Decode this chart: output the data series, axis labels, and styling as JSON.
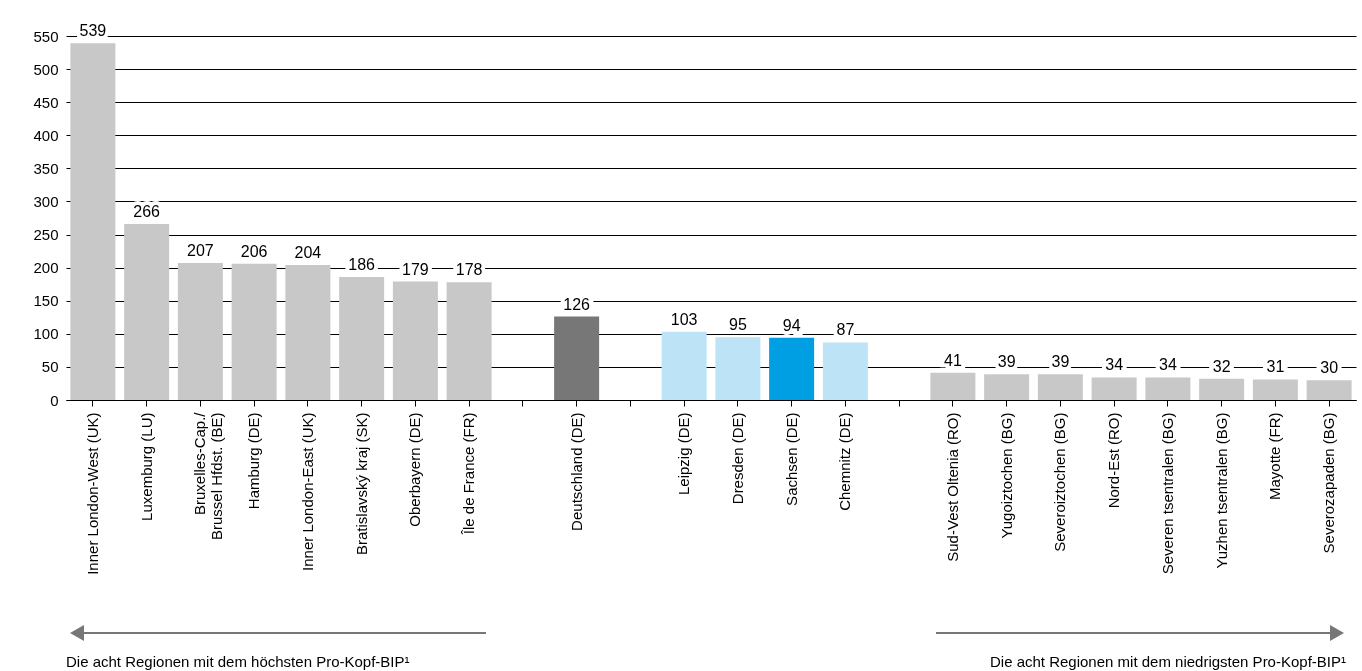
{
  "chart_data": {
    "type": "bar",
    "categories": [
      "Inner London-West (UK)",
      "Luxemburg (LU)",
      "Bruxelles-Cap./\nBrussel Hfdst. (BE)",
      "Hamburg (DE)",
      "Inner London-East (UK)",
      "Bratislavský kraj (SK)",
      "Oberbayern (DE)",
      "Île de France (FR)",
      null,
      "Deutschland (DE)",
      null,
      "Leipzig (DE)",
      "Dresden (DE)",
      "Sachsen (DE)",
      "Chemnitz (DE)",
      null,
      "Sud-Vest Oltenia (RO)",
      "Yugoiztochen (BG)",
      "Severoiztochen (BG)",
      "Nord-Est (RO)",
      "Severen tsentralen (BG)",
      "Yuzhen tsentralen (BG)",
      "Mayotte (FR)",
      "Severozapaden (BG)"
    ],
    "values": [
      539,
      266,
      207,
      206,
      204,
      186,
      179,
      178,
      null,
      126,
      null,
      103,
      95,
      94,
      87,
      null,
      41,
      39,
      39,
      34,
      34,
      32,
      31,
      30
    ],
    "colors": [
      "#c8c8c8",
      "#c8c8c8",
      "#c8c8c8",
      "#c8c8c8",
      "#c8c8c8",
      "#c8c8c8",
      "#c8c8c8",
      "#c8c8c8",
      null,
      "#777777",
      null,
      "#bde3f7",
      "#bde3f7",
      "#009fe3",
      "#bde3f7",
      null,
      "#c8c8c8",
      "#c8c8c8",
      "#c8c8c8",
      "#c8c8c8",
      "#c8c8c8",
      "#c8c8c8",
      "#c8c8c8",
      "#c8c8c8"
    ],
    "ylim": [
      0,
      550
    ],
    "yticks": [
      0,
      50,
      100,
      150,
      200,
      250,
      300,
      350,
      400,
      450,
      500,
      550
    ],
    "grid": "y",
    "data_labels": true,
    "annotations": [
      "Die acht Regionen mit dem höchsten Pro-Kopf-BIP¹",
      "Die acht Regionen mit dem niedrigsten Pro-Kopf-BIP¹"
    ]
  }
}
